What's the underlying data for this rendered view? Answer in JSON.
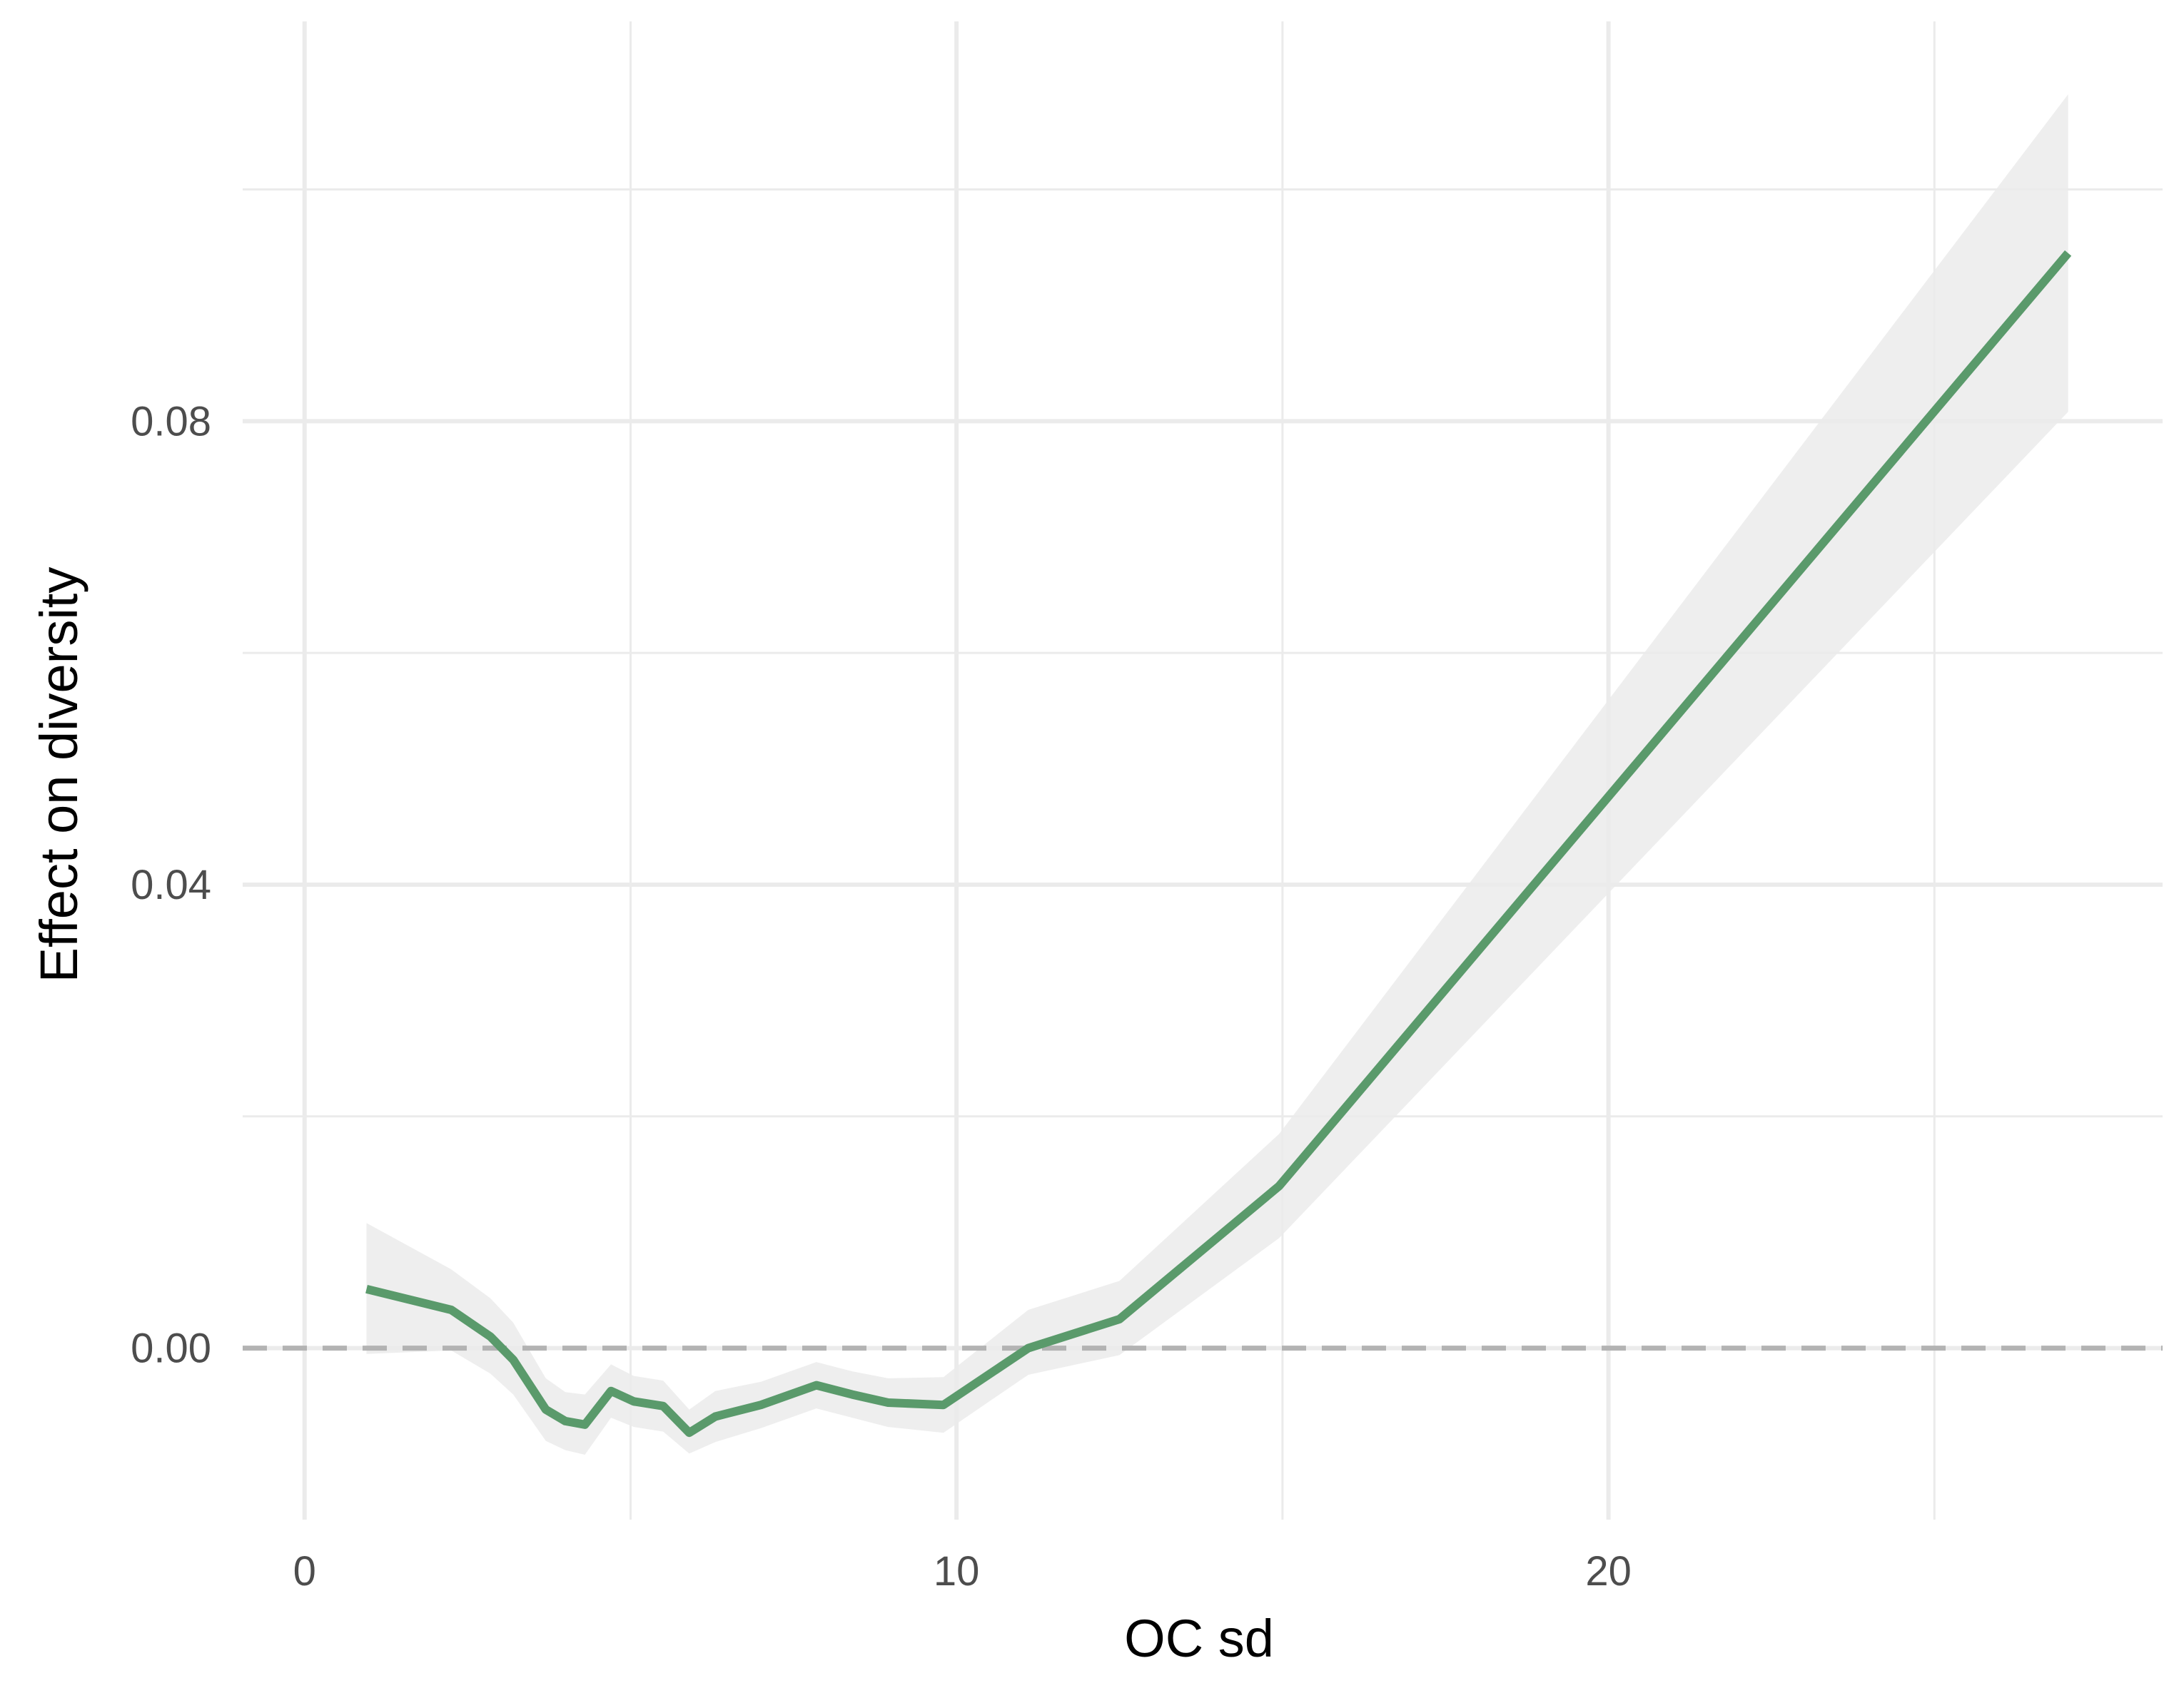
{
  "chart_data": {
    "type": "line",
    "xlabel": "OC sd",
    "ylabel": "Effect on diversity",
    "xlim": [
      -0.95,
      28.5
    ],
    "ylim": [
      -0.0148,
      0.1145
    ],
    "x_ticks": [
      0,
      10,
      20
    ],
    "x_tick_labels": [
      "0",
      "10",
      "20"
    ],
    "x_minor_ticks": [
      5,
      15,
      25
    ],
    "y_ticks": [
      0.0,
      0.04,
      0.08
    ],
    "y_tick_labels": [
      "0.00",
      "0.04",
      "0.08"
    ],
    "y_minor_ticks": [
      0.02,
      0.06,
      0.1
    ],
    "grid": true,
    "reference_line": {
      "y": 0.0,
      "style": "dashed",
      "color": "#b3b3b3"
    },
    "colors": {
      "line": "#5a9a6b",
      "ribbon": "#ebebeb",
      "grid": "#ebebeb",
      "background": "#ffffff"
    },
    "series": [
      {
        "x": [
          0.95,
          2.25,
          2.85,
          3.2,
          3.7,
          4.0,
          4.3,
          4.7,
          5.05,
          5.5,
          5.9,
          6.3,
          7.0,
          7.85,
          8.4,
          8.95,
          9.8,
          11.1,
          12.5,
          14.95,
          27.05
        ],
        "y": [
          0.0051,
          0.0033,
          0.001,
          -0.001,
          -0.0053,
          -0.0063,
          -0.0066,
          -0.0037,
          -0.0046,
          -0.005,
          -0.0073,
          -0.0059,
          -0.0049,
          -0.0032,
          -0.004,
          -0.0047,
          -0.0049,
          0.0,
          0.0025,
          0.014,
          0.0945
        ],
        "lower": [
          -0.0005,
          -0.0002,
          -0.0022,
          -0.004,
          -0.008,
          -0.0088,
          -0.0092,
          -0.006,
          -0.0068,
          -0.0072,
          -0.0091,
          -0.0081,
          -0.0069,
          -0.0052,
          -0.006,
          -0.0068,
          -0.0073,
          -0.0023,
          -0.0006,
          0.0095,
          0.0808
        ],
        "upper": [
          0.0108,
          0.0068,
          0.0043,
          0.0022,
          -0.0026,
          -0.0038,
          -0.004,
          -0.0014,
          -0.0024,
          -0.0028,
          -0.0053,
          -0.0037,
          -0.0029,
          -0.0012,
          -0.002,
          -0.0026,
          -0.0025,
          0.0033,
          0.0058,
          0.0185,
          0.1082
        ]
      }
    ]
  }
}
